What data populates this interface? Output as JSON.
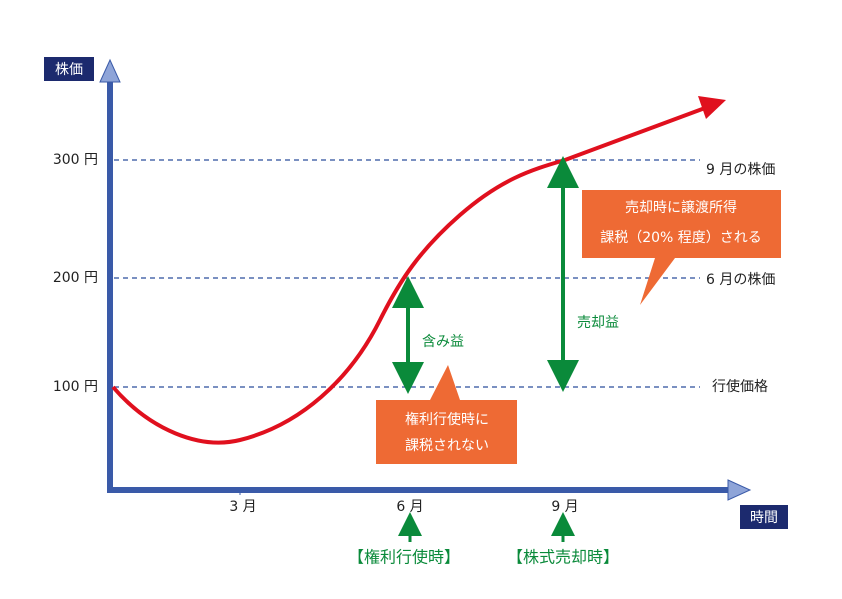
{
  "axes": {
    "y_label": "株価",
    "x_label": "時間"
  },
  "levels": [
    {
      "left": "300 円",
      "right": "9 月の株価"
    },
    {
      "left": "200 円",
      "right": "6 月の株価"
    },
    {
      "left": "100 円",
      "right": "行使価格"
    }
  ],
  "months": [
    "3 月",
    "6 月",
    "9 月"
  ],
  "gains": {
    "unrealized": "含み益",
    "realized": "売却益"
  },
  "callouts": [
    {
      "lines": [
        "権利行使時に",
        "課税されない"
      ]
    },
    {
      "lines": [
        "売却時に譲渡所得",
        "課税（20% 程度）される"
      ]
    }
  ],
  "events": [
    "【権利行使時】",
    "【株式売却時】"
  ]
}
